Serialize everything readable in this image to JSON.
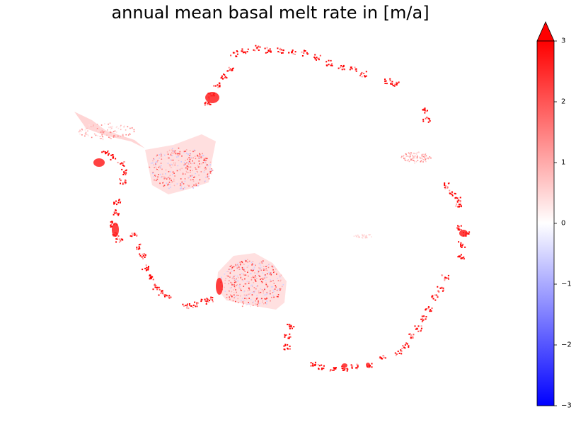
{
  "chart_data": {
    "type": "heatmap",
    "title": "annual mean basal melt rate in [m/a]",
    "colorbar": {
      "min": -3,
      "max": 3,
      "extend": "max",
      "cmap": "bwr",
      "ticks": [
        3,
        2,
        1,
        0,
        -1,
        -2,
        -3
      ],
      "tick_labels": [
        "3",
        "2",
        "1",
        "0",
        "−1",
        "−2",
        "−3"
      ]
    },
    "colors": {
      "negative": "#0000ff",
      "zero": "#ffffff",
      "positive": "#ff0000"
    }
  }
}
